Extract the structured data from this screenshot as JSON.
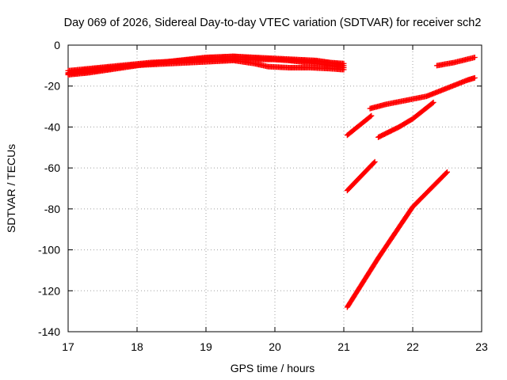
{
  "chart_data": {
    "type": "scatter",
    "title": "Day 069 of 2026, Sidereal Day-to-day VTEC variation (SDTVAR) for receiver sch2",
    "xlabel": "GPS time / hours",
    "ylabel": "SDTVAR / TECUs",
    "xlim": [
      17,
      23
    ],
    "ylim": [
      -140,
      0
    ],
    "xticks": [
      17,
      18,
      19,
      20,
      21,
      22,
      23
    ],
    "yticks": [
      0,
      -20,
      -40,
      -60,
      -80,
      -100,
      -120,
      -140
    ],
    "grid": true,
    "marker": "+",
    "color": "#ff0000",
    "series": [
      {
        "x": [
          17.0,
          17.3,
          17.6,
          17.9,
          18.2,
          18.5,
          18.8,
          19.1,
          19.4,
          19.7,
          20.0,
          20.3,
          20.6,
          20.8,
          21.0
        ],
        "y": [
          -12.5,
          -11.5,
          -10.5,
          -9.5,
          -8.5,
          -8.0,
          -7.5,
          -7.0,
          -7.0,
          -7.0,
          -7.0,
          -7.5,
          -8.0,
          -8.5,
          -9.0
        ]
      },
      {
        "x": [
          17.0,
          17.3,
          17.6,
          17.9,
          18.2,
          18.5,
          18.8,
          19.1,
          19.4,
          19.7,
          20.0,
          20.3,
          20.6,
          20.8,
          21.0
        ],
        "y": [
          -14.5,
          -13.5,
          -12.0,
          -10.5,
          -9.0,
          -8.0,
          -7.0,
          -6.0,
          -5.5,
          -6.0,
          -6.5,
          -7.0,
          -7.5,
          -8.5,
          -10.0
        ]
      },
      {
        "x": [
          17.0,
          17.3,
          17.6,
          17.9,
          18.2,
          18.5,
          18.8,
          19.1,
          19.4,
          19.7,
          19.9,
          20.2,
          20.5,
          20.8,
          21.0
        ],
        "y": [
          -13.5,
          -12.0,
          -11.0,
          -10.0,
          -9.5,
          -9.0,
          -8.5,
          -8.0,
          -7.5,
          -9.0,
          -10.5,
          -11.0,
          -11.0,
          -11.5,
          -12.0
        ]
      },
      {
        "x": [
          17.0,
          17.4,
          17.8,
          18.2,
          18.6,
          19.0,
          19.4,
          19.8,
          20.2,
          20.6,
          21.0
        ],
        "y": [
          -14.0,
          -12.5,
          -10.5,
          -9.0,
          -7.5,
          -6.0,
          -5.5,
          -6.5,
          -7.5,
          -9.0,
          -11.0
        ]
      },
      {
        "x": [
          21.05,
          21.45
        ],
        "y": [
          -71,
          -57
        ]
      },
      {
        "x": [
          21.05,
          21.4
        ],
        "y": [
          -44,
          -34.5
        ]
      },
      {
        "x": [
          21.05,
          21.5,
          22.0,
          22.5
        ],
        "y": [
          -128,
          -104,
          -79,
          -62
        ]
      },
      {
        "x": [
          21.5,
          21.8,
          22.0,
          22.3
        ],
        "y": [
          -45,
          -40,
          -36,
          -28
        ]
      },
      {
        "x": [
          21.38,
          21.6,
          21.9,
          22.2,
          22.5,
          22.8,
          22.9
        ],
        "y": [
          -31,
          -29,
          -27,
          -25,
          -21,
          -17,
          -16
        ]
      },
      {
        "x": [
          22.35,
          22.6,
          22.9
        ],
        "y": [
          -10,
          -8.5,
          -6
        ]
      }
    ]
  }
}
